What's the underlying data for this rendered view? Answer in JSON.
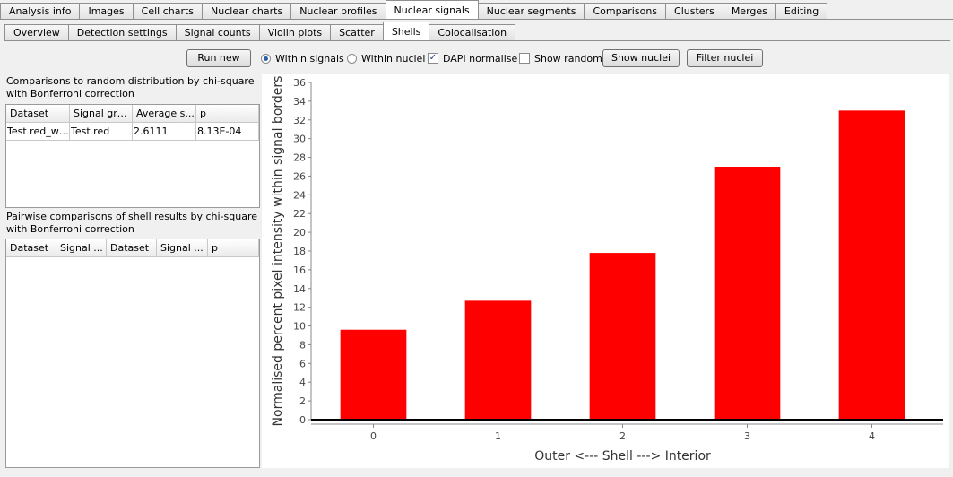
{
  "main_tabs": [
    "Analysis info",
    "Images",
    "Cell charts",
    "Nuclear charts",
    "Nuclear profiles",
    "Nuclear signals",
    "Nuclear segments",
    "Comparisons",
    "Clusters",
    "Merges",
    "Editing"
  ],
  "active_main_tab": "Nuclear signals",
  "sub_tabs": [
    "Overview",
    "Detection settings",
    "Signal counts",
    "Violin plots",
    "Scatter",
    "Shells",
    "Colocalisation"
  ],
  "active_sub_tab": "Shells",
  "toolbar": {
    "run_new": "Run new",
    "within_signals": "Within signals",
    "within_signals_selected": true,
    "within_nuclei": "Within nuclei",
    "within_nuclei_selected": false,
    "dapi_normalise": "DAPI normalise",
    "dapi_checked": true,
    "show_random": "Show random",
    "show_random_checked": false,
    "show_nuclei": "Show nuclei",
    "filter_nuclei": "Filter nuclei"
  },
  "random_panel": {
    "caption": "Comparisons to random distribution by chi-square with Bonferroni correction",
    "columns": [
      "Dataset",
      "Signal group",
      "Average s...",
      "p"
    ],
    "rows": [
      [
        "Test red_wi...",
        "Test red",
        "2.6111",
        "8.13E-04"
      ]
    ]
  },
  "pairwise_panel": {
    "caption": "Pairwise comparisons of shell results by chi-square with Bonferroni correction",
    "columns": [
      "Dataset",
      "Signal ...",
      "Dataset",
      "Signal ...",
      "p"
    ],
    "rows": []
  },
  "chart_data": {
    "type": "bar",
    "categories": [
      "0",
      "1",
      "2",
      "3",
      "4"
    ],
    "values": [
      9.6,
      12.7,
      17.8,
      27.0,
      33.0
    ],
    "xlabel": "Outer <--- Shell ---> Interior",
    "ylabel": "Normalised percent pixel intensity within signal borders",
    "ylim": [
      0,
      36
    ],
    "yticks": [
      0,
      2,
      4,
      6,
      8,
      10,
      12,
      14,
      16,
      18,
      20,
      22,
      24,
      26,
      28,
      30,
      32,
      34,
      36
    ],
    "bar_color": "#ff0000",
    "grid": false,
    "legend": "none"
  }
}
